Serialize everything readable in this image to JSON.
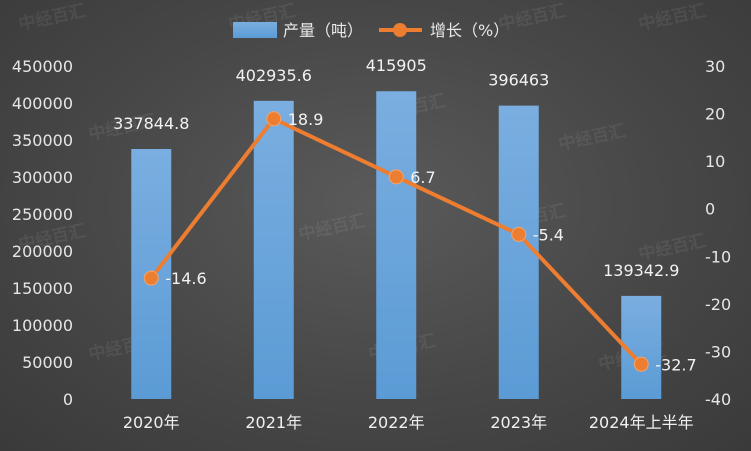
{
  "chart_data": {
    "type": "bar",
    "categories": [
      "2020年",
      "2021年",
      "2022年",
      "2023年",
      "2024年上半年"
    ],
    "series": [
      {
        "name": "产量（吨）",
        "type": "bar",
        "axis": "left",
        "values": [
          337844.8,
          402935.6,
          415905,
          396463,
          139342.9
        ],
        "labels": [
          "337844.8",
          "402935.6",
          "415905",
          "396463",
          "139342.9"
        ],
        "color": "#5b9bd5"
      },
      {
        "name": "增长（%）",
        "type": "line",
        "axis": "right",
        "values": [
          -14.6,
          18.9,
          6.7,
          -5.4,
          -32.7
        ],
        "labels": [
          "-14.6",
          "18.9",
          "6.7",
          "-5.4",
          "-32.7"
        ],
        "color": "#ed7d31"
      }
    ],
    "y_left": {
      "ylim": [
        0,
        450000
      ],
      "ticks": [
        "0",
        "50000",
        "100000",
        "150000",
        "200000",
        "250000",
        "300000",
        "350000",
        "400000",
        "450000"
      ]
    },
    "y_right": {
      "ylim": [
        -40,
        30
      ],
      "ticks": [
        "-40",
        "-30",
        "-20",
        "-10",
        "0",
        "10",
        "20",
        "30"
      ]
    },
    "legend_position": "top-center",
    "grid": false,
    "watermark": "中经百汇"
  }
}
